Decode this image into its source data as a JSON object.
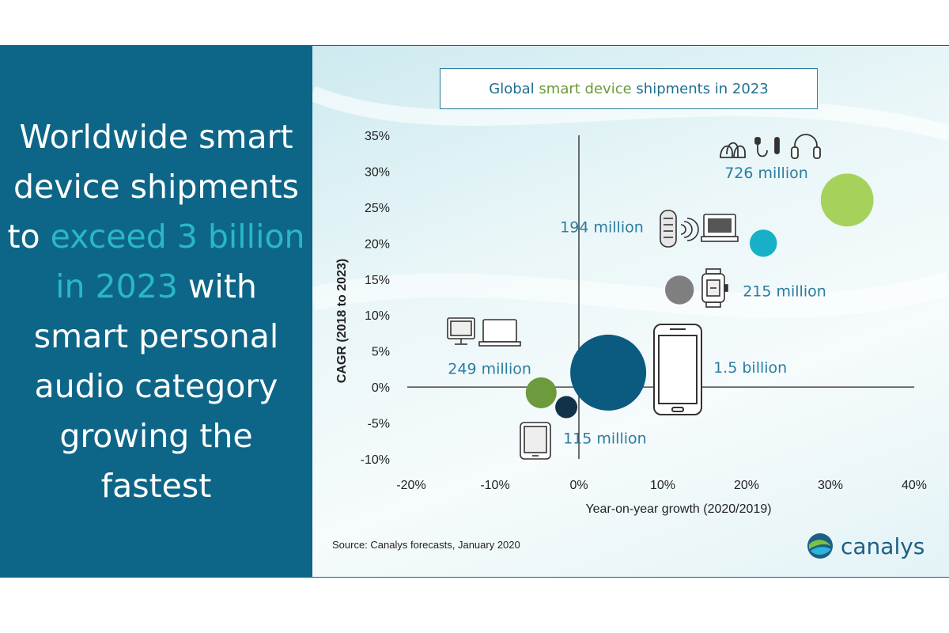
{
  "headline": {
    "part1": "Worldwide smart device shipments to ",
    "highlight": "exceed 3 billion in 2023",
    "part2": " with smart personal audio category growing the fastest"
  },
  "title": {
    "part1": "Global ",
    "green": "smart device",
    "part2": " shipments in 2023"
  },
  "source": "Source:  Canalys forecasts, January 2020",
  "logo_text": "canalys",
  "colors": {
    "left_panel": "#0d6687",
    "highlight": "#29b7c9",
    "label_blue": "#2a7da0",
    "green_light": "#a6d15a",
    "teal": "#17b0c6",
    "grey": "#7f7f7f",
    "navy": "#0b5b80",
    "green_dark": "#6d9a3d",
    "dark_navy": "#123247"
  },
  "chart_data": {
    "type": "scatter",
    "title": "Global smart device shipments in 2023",
    "xlabel": "Year-on-year growth (2020/2019)",
    "ylabel": "CAGR (2018 to 2023)",
    "xlim": [
      -20,
      40
    ],
    "ylim": [
      -10,
      35
    ],
    "x_ticks": [
      "-20%",
      "-10%",
      "0%",
      "10%",
      "20%",
      "30%",
      "40%"
    ],
    "y_ticks": [
      "35%",
      "30%",
      "25%",
      "20%",
      "15%",
      "10%",
      "5%",
      "0%",
      "-5%",
      "-10%"
    ],
    "points": [
      {
        "label": "726 million",
        "device": "smart personal audio",
        "x": 32,
        "y": 26,
        "size": 726,
        "color": "#a6d15a",
        "icon": "audio-icons"
      },
      {
        "label": "194 million",
        "device": "smart speakers and displays",
        "x": 22,
        "y": 20,
        "size": 194,
        "color": "#17b0c6",
        "icon": "smart-speaker-icons"
      },
      {
        "label": "215 million",
        "device": "wearables",
        "x": 12,
        "y": 13.5,
        "size": 215,
        "color": "#7f7f7f",
        "icon": "smartwatch-icon"
      },
      {
        "label": "1.5 billion",
        "device": "smartphones",
        "x": 3.5,
        "y": 2,
        "size": 1500,
        "color": "#0b5b80",
        "icon": "smartphone-icon"
      },
      {
        "label": "249 million",
        "device": "PCs",
        "x": -4.5,
        "y": -0.8,
        "size": 249,
        "color": "#6d9a3d",
        "icon": "pc-icons"
      },
      {
        "label": "115 million",
        "device": "tablets",
        "x": -1.5,
        "y": -2.8,
        "size": 115,
        "color": "#123247",
        "icon": "tablet-icon"
      }
    ]
  }
}
